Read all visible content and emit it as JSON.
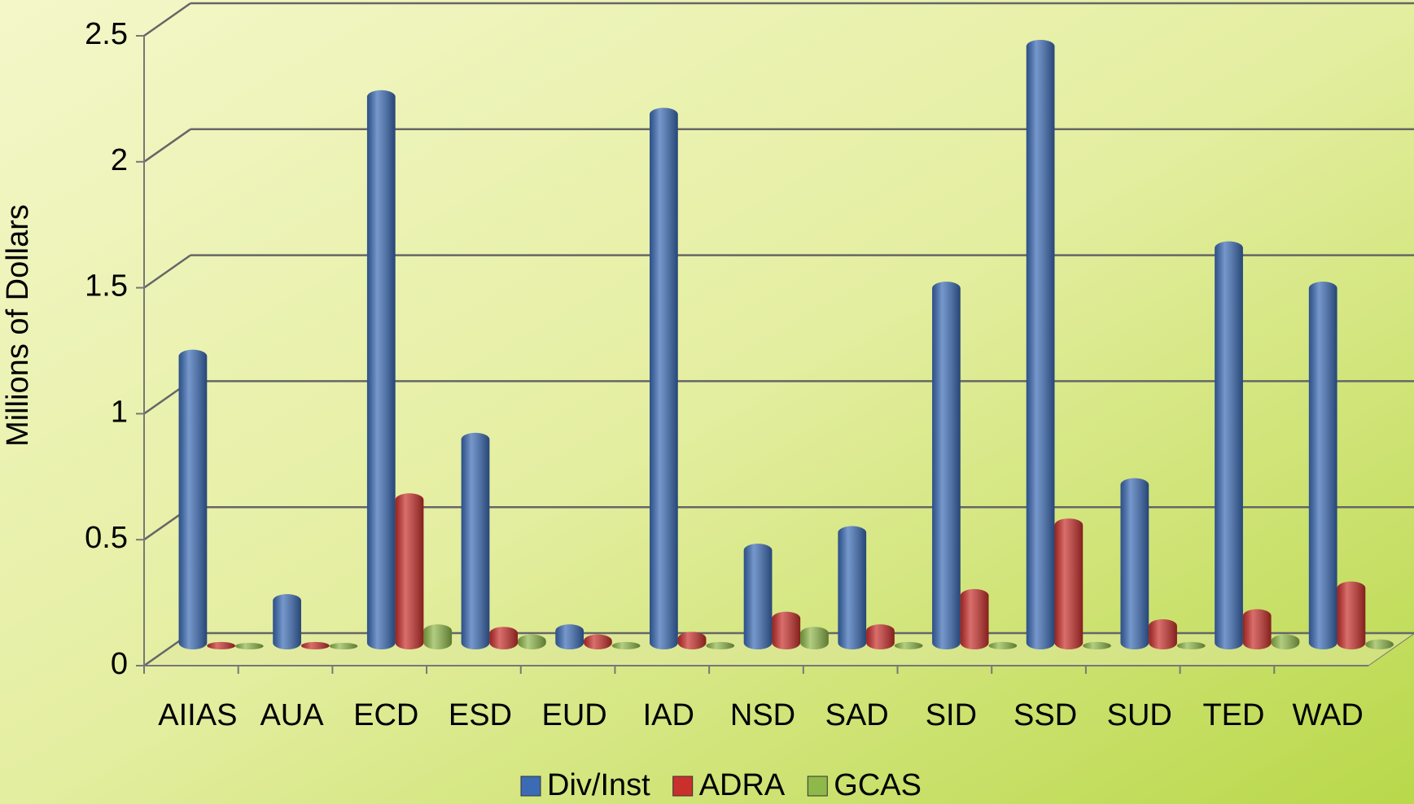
{
  "chart_data": {
    "type": "bar",
    "y_label": "Millions of Dollars",
    "categories": [
      "AIIAS",
      "AUA",
      "ECD",
      "ESD",
      "EUD",
      "IAD",
      "NSD",
      "SAD",
      "SID",
      "SSD",
      "SUD",
      "TED",
      "WAD"
    ],
    "series": [
      {
        "name": "Div/Inst",
        "color": "#3b6bb5",
        "values": [
          1.17,
          0.2,
          2.2,
          0.84,
          0.08,
          2.13,
          0.4,
          0.47,
          1.44,
          2.4,
          0.66,
          1.6,
          1.44
        ]
      },
      {
        "name": "ADRA",
        "color": "#c9302c",
        "values": [
          0.01,
          0.01,
          0.6,
          0.07,
          0.04,
          0.05,
          0.13,
          0.08,
          0.22,
          0.5,
          0.1,
          0.14,
          0.25
        ]
      },
      {
        "name": "GCAS",
        "color": "#8fb84a",
        "values": [
          0.005,
          0.005,
          0.08,
          0.04,
          0.01,
          0.01,
          0.07,
          0.01,
          0.01,
          0.01,
          0.01,
          0.04,
          0.02
        ]
      }
    ],
    "ylim": [
      0,
      2.5
    ],
    "yticks": [
      0,
      0.5,
      1,
      1.5,
      2,
      2.5
    ],
    "grid": true,
    "legend": "bottom"
  }
}
